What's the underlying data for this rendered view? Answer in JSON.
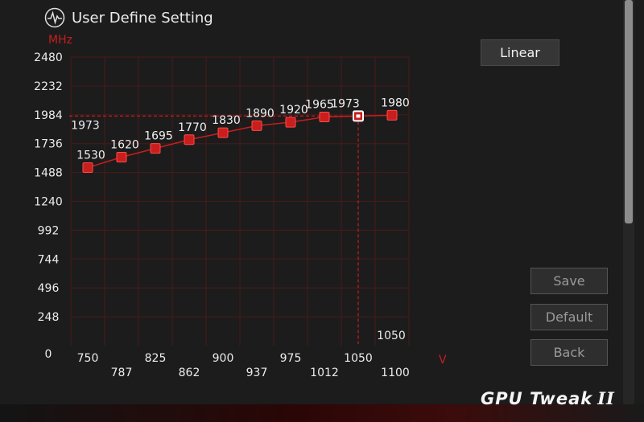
{
  "header": {
    "title": "User Define Setting",
    "icon": "waveform-icon"
  },
  "buttons": {
    "linear": "Linear",
    "save": "Save",
    "default": "Default",
    "back": "Back"
  },
  "logo": {
    "text": "GPU Tweak",
    "suffix": "II"
  },
  "colors": {
    "accent": "#c81e1e",
    "grid": "#4a1a1a",
    "background": "#1c1c1c"
  },
  "chart_data": {
    "type": "line",
    "ylabel": "MHz",
    "xlabel": "V",
    "ylim": [
      0,
      2480
    ],
    "y_ticks": [
      0,
      248,
      496,
      744,
      992,
      1240,
      1488,
      1736,
      1984,
      2232,
      2480
    ],
    "x_ticks": [
      750,
      787,
      825,
      862,
      900,
      937,
      975,
      1012,
      1050,
      1100
    ],
    "x": [
      750,
      787,
      825,
      862,
      900,
      937,
      975,
      1012,
      1050,
      1100
    ],
    "values": [
      1530,
      1620,
      1695,
      1770,
      1830,
      1890,
      1920,
      1965,
      1973,
      1980
    ],
    "labels": [
      "1530",
      "1620",
      "1695",
      "1770",
      "1830",
      "1890",
      "1920",
      "1965",
      "1973",
      "1980"
    ],
    "selected": {
      "x": 1050,
      "y": 1973,
      "x_label": "1050",
      "y_label": "1973"
    },
    "grid": true
  }
}
